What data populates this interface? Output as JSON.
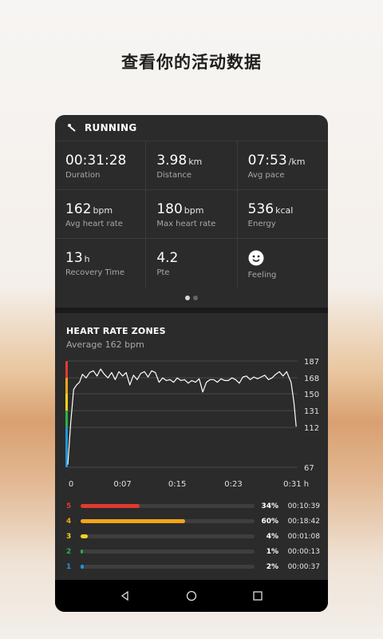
{
  "headline": "查看你的活动数据",
  "activity": {
    "type": "RUNNING",
    "icon": "running-icon"
  },
  "stats": [
    [
      {
        "value": "00:31:28",
        "unit": "",
        "label": "Duration"
      },
      {
        "value": "3.98",
        "unit": "km",
        "label": "Distance"
      },
      {
        "value": "07:53",
        "unit": "/km",
        "label": "Avg pace"
      }
    ],
    [
      {
        "value": "162",
        "unit": "bpm",
        "label": "Avg heart rate"
      },
      {
        "value": "180",
        "unit": "bpm",
        "label": "Max heart rate"
      },
      {
        "value": "536",
        "unit": "kcal",
        "label": "Energy"
      }
    ],
    [
      {
        "value": "13",
        "unit": "h",
        "label": "Recovery Time"
      },
      {
        "value": "4.2",
        "unit": "",
        "label": "Pte"
      },
      {
        "value": "",
        "unit": "",
        "label": "Feeling",
        "icon": "smiley-face-icon"
      }
    ]
  ],
  "pager": {
    "pages": 2,
    "current": 1
  },
  "heart_rate": {
    "title": "HEART RATE ZONES",
    "subtitle": "Average 162 bpm"
  },
  "chart_data": {
    "type": "line",
    "x_ticks": [
      "0",
      "0:07",
      "0:15",
      "0:23",
      "0:31 h"
    ],
    "y_ticks": [
      187,
      168,
      150,
      131,
      112,
      67
    ],
    "xlim": [
      0,
      31.5
    ],
    "ylim": [
      67,
      187
    ],
    "zone_colors": [
      "#2196d6",
      "#28b24a",
      "#f4d21f",
      "#f2a51a",
      "#e03a2f"
    ],
    "series": [
      {
        "x": [
          0,
          0.4,
          0.8,
          1.2,
          1.6,
          2,
          2.5,
          3,
          3.5,
          4,
          4.5,
          5,
          5.5,
          6,
          6.5,
          7,
          7.5,
          8,
          8.5,
          9,
          9.5,
          10,
          10.5,
          11,
          11.5,
          12,
          12.5,
          13,
          13.5,
          14,
          14.5,
          15,
          15.5,
          16,
          16.5,
          17,
          17.5,
          18,
          18.5,
          19,
          19.5,
          20,
          20.5,
          21,
          21.5,
          22,
          22.5,
          23,
          23.5,
          24,
          24.5,
          25,
          25.5,
          26,
          26.5,
          27,
          27.5,
          28,
          28.5,
          29,
          29.5,
          30,
          30.3,
          30.6,
          31,
          31.3
        ],
        "y": [
          70,
          118,
          155,
          160,
          163,
          172,
          168,
          174,
          176,
          170,
          178,
          172,
          168,
          174,
          166,
          175,
          170,
          174,
          160,
          171,
          166,
          173,
          175,
          169,
          176,
          174,
          163,
          168,
          165,
          166,
          163,
          168,
          165,
          166,
          162,
          165,
          163,
          167,
          152,
          163,
          166,
          166,
          163,
          167,
          165,
          165,
          168,
          166,
          162,
          169,
          170,
          166,
          169,
          167,
          169,
          171,
          166,
          168,
          172,
          175,
          170,
          175,
          169,
          163,
          140,
          113
        ]
      }
    ]
  },
  "zones": [
    {
      "zone": "5",
      "color": "#e03a2f",
      "percent": 34,
      "pct_label": "34%",
      "time": "00:10:39"
    },
    {
      "zone": "4",
      "color": "#f2a51a",
      "percent": 60,
      "pct_label": "60%",
      "time": "00:18:42"
    },
    {
      "zone": "3",
      "color": "#f4d21f",
      "percent": 4,
      "pct_label": "4%",
      "time": "00:01:08"
    },
    {
      "zone": "2",
      "color": "#28b24a",
      "percent": 1,
      "pct_label": "1%",
      "time": "00:00:13"
    },
    {
      "zone": "1",
      "color": "#2196d6",
      "percent": 2,
      "pct_label": "2%",
      "time": "00:00:37"
    }
  ],
  "navbar": {
    "icons": [
      "back-icon",
      "home-icon",
      "recents-icon"
    ]
  }
}
